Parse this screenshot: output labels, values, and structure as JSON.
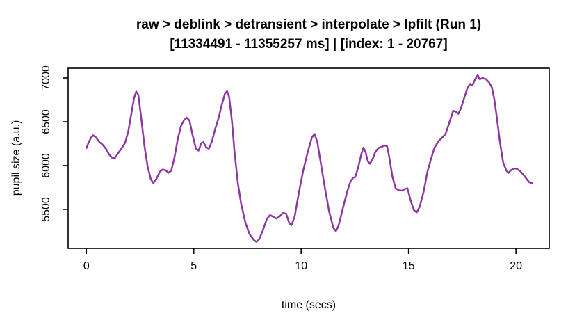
{
  "chart_data": {
    "type": "line",
    "title": "raw > deblink > detransient > interpolate > lpfilt (Run 1)",
    "subtitle": "[11334491 - 11355257 ms] | [index: 1 - 20767]",
    "xlabel": "time (secs)",
    "ylabel": "pupil size (a.u.)",
    "x_ticks": [
      0,
      5,
      10,
      15,
      20
    ],
    "y_ticks": [
      5500,
      6000,
      6500,
      7000
    ],
    "xlim": [
      -0.85,
      21.55
    ],
    "ylim": [
      5055,
      7111
    ],
    "grid": false,
    "legend": "none",
    "line_color": "#8c38a0",
    "line_width": 2.5,
    "box_color": "#000000",
    "points": [
      [
        0.0,
        6200
      ],
      [
        0.1,
        6260
      ],
      [
        0.22,
        6320
      ],
      [
        0.32,
        6345
      ],
      [
        0.45,
        6320
      ],
      [
        0.6,
        6270
      ],
      [
        0.75,
        6240
      ],
      [
        0.9,
        6195
      ],
      [
        1.05,
        6130
      ],
      [
        1.2,
        6090
      ],
      [
        1.32,
        6082
      ],
      [
        1.5,
        6150
      ],
      [
        1.65,
        6200
      ],
      [
        1.8,
        6260
      ],
      [
        1.95,
        6390
      ],
      [
        2.1,
        6600
      ],
      [
        2.22,
        6770
      ],
      [
        2.32,
        6845
      ],
      [
        2.42,
        6805
      ],
      [
        2.55,
        6550
      ],
      [
        2.7,
        6230
      ],
      [
        2.85,
        5990
      ],
      [
        3.0,
        5845
      ],
      [
        3.12,
        5800
      ],
      [
        3.25,
        5845
      ],
      [
        3.42,
        5930
      ],
      [
        3.55,
        5955
      ],
      [
        3.7,
        5945
      ],
      [
        3.82,
        5918
      ],
      [
        3.95,
        5940
      ],
      [
        4.1,
        6090
      ],
      [
        4.25,
        6300
      ],
      [
        4.4,
        6450
      ],
      [
        4.55,
        6520
      ],
      [
        4.68,
        6545
      ],
      [
        4.8,
        6515
      ],
      [
        4.95,
        6340
      ],
      [
        5.1,
        6195
      ],
      [
        5.22,
        6170
      ],
      [
        5.35,
        6255
      ],
      [
        5.45,
        6268
      ],
      [
        5.58,
        6210
      ],
      [
        5.7,
        6192
      ],
      [
        5.85,
        6280
      ],
      [
        6.0,
        6420
      ],
      [
        6.15,
        6540
      ],
      [
        6.3,
        6690
      ],
      [
        6.45,
        6820
      ],
      [
        6.55,
        6850
      ],
      [
        6.65,
        6780
      ],
      [
        6.78,
        6500
      ],
      [
        6.9,
        6150
      ],
      [
        7.05,
        5800
      ],
      [
        7.2,
        5570
      ],
      [
        7.4,
        5350
      ],
      [
        7.6,
        5215
      ],
      [
        7.8,
        5150
      ],
      [
        7.92,
        5130
      ],
      [
        8.05,
        5160
      ],
      [
        8.2,
        5250
      ],
      [
        8.4,
        5390
      ],
      [
        8.55,
        5435
      ],
      [
        8.7,
        5415
      ],
      [
        8.85,
        5395
      ],
      [
        9.0,
        5420
      ],
      [
        9.15,
        5458
      ],
      [
        9.3,
        5450
      ],
      [
        9.45,
        5340
      ],
      [
        9.55,
        5320
      ],
      [
        9.7,
        5420
      ],
      [
        9.9,
        5700
      ],
      [
        10.1,
        5950
      ],
      [
        10.3,
        6150
      ],
      [
        10.5,
        6320
      ],
      [
        10.62,
        6360
      ],
      [
        10.75,
        6270
      ],
      [
        10.9,
        6050
      ],
      [
        11.1,
        5750
      ],
      [
        11.3,
        5480
      ],
      [
        11.5,
        5290
      ],
      [
        11.62,
        5252
      ],
      [
        11.75,
        5320
      ],
      [
        11.95,
        5520
      ],
      [
        12.15,
        5710
      ],
      [
        12.3,
        5820
      ],
      [
        12.42,
        5860
      ],
      [
        12.52,
        5870
      ],
      [
        12.65,
        5975
      ],
      [
        12.8,
        6130
      ],
      [
        12.9,
        6205
      ],
      [
        13.0,
        6150
      ],
      [
        13.1,
        6050
      ],
      [
        13.2,
        6020
      ],
      [
        13.32,
        6070
      ],
      [
        13.45,
        6155
      ],
      [
        13.6,
        6200
      ],
      [
        13.75,
        6215
      ],
      [
        13.9,
        6230
      ],
      [
        14.0,
        6220
      ],
      [
        14.1,
        6100
      ],
      [
        14.25,
        5870
      ],
      [
        14.4,
        5740
      ],
      [
        14.55,
        5718
      ],
      [
        14.7,
        5715
      ],
      [
        14.85,
        5735
      ],
      [
        14.95,
        5740
      ],
      [
        15.1,
        5600
      ],
      [
        15.25,
        5490
      ],
      [
        15.38,
        5467
      ],
      [
        15.52,
        5530
      ],
      [
        15.7,
        5700
      ],
      [
        15.88,
        5930
      ],
      [
        16.05,
        6080
      ],
      [
        16.2,
        6200
      ],
      [
        16.4,
        6280
      ],
      [
        16.55,
        6315
      ],
      [
        16.72,
        6360
      ],
      [
        16.9,
        6490
      ],
      [
        17.08,
        6625
      ],
      [
        17.2,
        6615
      ],
      [
        17.32,
        6590
      ],
      [
        17.45,
        6660
      ],
      [
        17.6,
        6780
      ],
      [
        17.75,
        6890
      ],
      [
        17.87,
        6932
      ],
      [
        17.97,
        6915
      ],
      [
        18.1,
        6985
      ],
      [
        18.22,
        7032
      ],
      [
        18.32,
        6985
      ],
      [
        18.45,
        7000
      ],
      [
        18.6,
        6985
      ],
      [
        18.75,
        6950
      ],
      [
        18.88,
        6890
      ],
      [
        19.0,
        6750
      ],
      [
        19.12,
        6530
      ],
      [
        19.25,
        6280
      ],
      [
        19.4,
        6040
      ],
      [
        19.55,
        5945
      ],
      [
        19.65,
        5915
      ],
      [
        19.78,
        5950
      ],
      [
        19.92,
        5968
      ],
      [
        20.05,
        5962
      ],
      [
        20.2,
        5935
      ],
      [
        20.35,
        5895
      ],
      [
        20.5,
        5845
      ],
      [
        20.62,
        5810
      ],
      [
        20.72,
        5800
      ],
      [
        20.77,
        5800
      ]
    ]
  }
}
